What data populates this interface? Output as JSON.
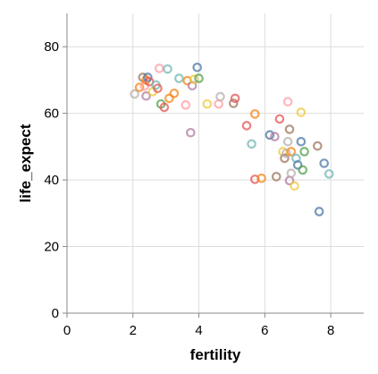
{
  "chart_data": {
    "type": "scatter",
    "title": "",
    "xlabel": "fertility",
    "ylabel": "life_expect",
    "xlim": [
      0,
      9
    ],
    "ylim": [
      0,
      90
    ],
    "x_ticks": [
      0,
      2,
      4,
      6,
      8
    ],
    "y_ticks": [
      0,
      20,
      40,
      60,
      80
    ],
    "grid": true,
    "marker": "open-circle",
    "palette": [
      "#4c78a8",
      "#f58518",
      "#e45756",
      "#72b7b2",
      "#54a24b",
      "#eeca3b",
      "#b279a2",
      "#ff9da6",
      "#9d755d",
      "#bab0ac"
    ],
    "points": [
      {
        "x": 2.05,
        "y": 65.8,
        "color": "#bab0ac"
      },
      {
        "x": 2.2,
        "y": 67.8,
        "color": "#f58518"
      },
      {
        "x": 2.3,
        "y": 70.8,
        "color": "#9d755d"
      },
      {
        "x": 2.35,
        "y": 68.2,
        "color": "#ff9da6"
      },
      {
        "x": 2.4,
        "y": 70.0,
        "color": "#f58518"
      },
      {
        "x": 2.45,
        "y": 70.8,
        "color": "#4c78a8"
      },
      {
        "x": 2.4,
        "y": 65.2,
        "color": "#b279a2"
      },
      {
        "x": 2.5,
        "y": 69.5,
        "color": "#e45756"
      },
      {
        "x": 2.6,
        "y": 66.5,
        "color": "#eeca3b"
      },
      {
        "x": 2.7,
        "y": 68.5,
        "color": "#72b7b2"
      },
      {
        "x": 2.75,
        "y": 67.5,
        "color": "#e45756"
      },
      {
        "x": 2.8,
        "y": 73.5,
        "color": "#ff9da6"
      },
      {
        "x": 2.85,
        "y": 62.8,
        "color": "#54a24b"
      },
      {
        "x": 2.95,
        "y": 61.8,
        "color": "#e45756"
      },
      {
        "x": 3.05,
        "y": 73.3,
        "color": "#72b7b2"
      },
      {
        "x": 3.1,
        "y": 64.5,
        "color": "#f58518"
      },
      {
        "x": 3.25,
        "y": 66.0,
        "color": "#f58518"
      },
      {
        "x": 3.4,
        "y": 70.5,
        "color": "#72b7b2"
      },
      {
        "x": 3.6,
        "y": 62.5,
        "color": "#ff9da6"
      },
      {
        "x": 3.65,
        "y": 69.8,
        "color": "#f58518"
      },
      {
        "x": 3.75,
        "y": 54.2,
        "color": "#b279a2"
      },
      {
        "x": 3.8,
        "y": 68.3,
        "color": "#b279a2"
      },
      {
        "x": 3.85,
        "y": 70.2,
        "color": "#eeca3b"
      },
      {
        "x": 3.95,
        "y": 73.8,
        "color": "#4c78a8"
      },
      {
        "x": 4.0,
        "y": 70.5,
        "color": "#54a24b"
      },
      {
        "x": 4.25,
        "y": 62.8,
        "color": "#eeca3b"
      },
      {
        "x": 4.6,
        "y": 62.8,
        "color": "#ff9da6"
      },
      {
        "x": 4.65,
        "y": 65.0,
        "color": "#bab0ac"
      },
      {
        "x": 5.05,
        "y": 63.0,
        "color": "#9d755d"
      },
      {
        "x": 5.1,
        "y": 64.5,
        "color": "#e45756"
      },
      {
        "x": 5.45,
        "y": 56.3,
        "color": "#e45756"
      },
      {
        "x": 5.6,
        "y": 50.8,
        "color": "#72b7b2"
      },
      {
        "x": 5.7,
        "y": 59.8,
        "color": "#f58518"
      },
      {
        "x": 5.7,
        "y": 40.2,
        "color": "#e45756"
      },
      {
        "x": 5.9,
        "y": 40.5,
        "color": "#f58518"
      },
      {
        "x": 6.15,
        "y": 53.5,
        "color": "#4c78a8"
      },
      {
        "x": 6.3,
        "y": 53.0,
        "color": "#b279a2"
      },
      {
        "x": 6.35,
        "y": 41.0,
        "color": "#9d755d"
      },
      {
        "x": 6.45,
        "y": 58.3,
        "color": "#e45756"
      },
      {
        "x": 6.55,
        "y": 48.5,
        "color": "#eeca3b"
      },
      {
        "x": 6.6,
        "y": 46.5,
        "color": "#9d755d"
      },
      {
        "x": 6.65,
        "y": 48.0,
        "color": "#bab0ac"
      },
      {
        "x": 6.7,
        "y": 63.5,
        "color": "#ff9da6"
      },
      {
        "x": 6.7,
        "y": 51.5,
        "color": "#bab0ac"
      },
      {
        "x": 6.75,
        "y": 55.2,
        "color": "#9d755d"
      },
      {
        "x": 6.75,
        "y": 39.8,
        "color": "#b279a2"
      },
      {
        "x": 6.8,
        "y": 48.5,
        "color": "#f58518"
      },
      {
        "x": 6.8,
        "y": 42.0,
        "color": "#bab0ac"
      },
      {
        "x": 6.9,
        "y": 38.2,
        "color": "#eeca3b"
      },
      {
        "x": 6.95,
        "y": 46.5,
        "color": "#72b7b2"
      },
      {
        "x": 7.0,
        "y": 44.5,
        "color": "#4c78a8"
      },
      {
        "x": 7.1,
        "y": 51.5,
        "color": "#4c78a8"
      },
      {
        "x": 7.15,
        "y": 43.0,
        "color": "#54a24b"
      },
      {
        "x": 7.2,
        "y": 48.5,
        "color": "#54a24b"
      },
      {
        "x": 7.1,
        "y": 60.3,
        "color": "#eeca3b"
      },
      {
        "x": 7.6,
        "y": 50.2,
        "color": "#9d755d"
      },
      {
        "x": 7.65,
        "y": 30.5,
        "color": "#4c78a8"
      },
      {
        "x": 7.8,
        "y": 45.0,
        "color": "#4c78a8"
      },
      {
        "x": 7.95,
        "y": 41.8,
        "color": "#72b7b2"
      }
    ]
  }
}
